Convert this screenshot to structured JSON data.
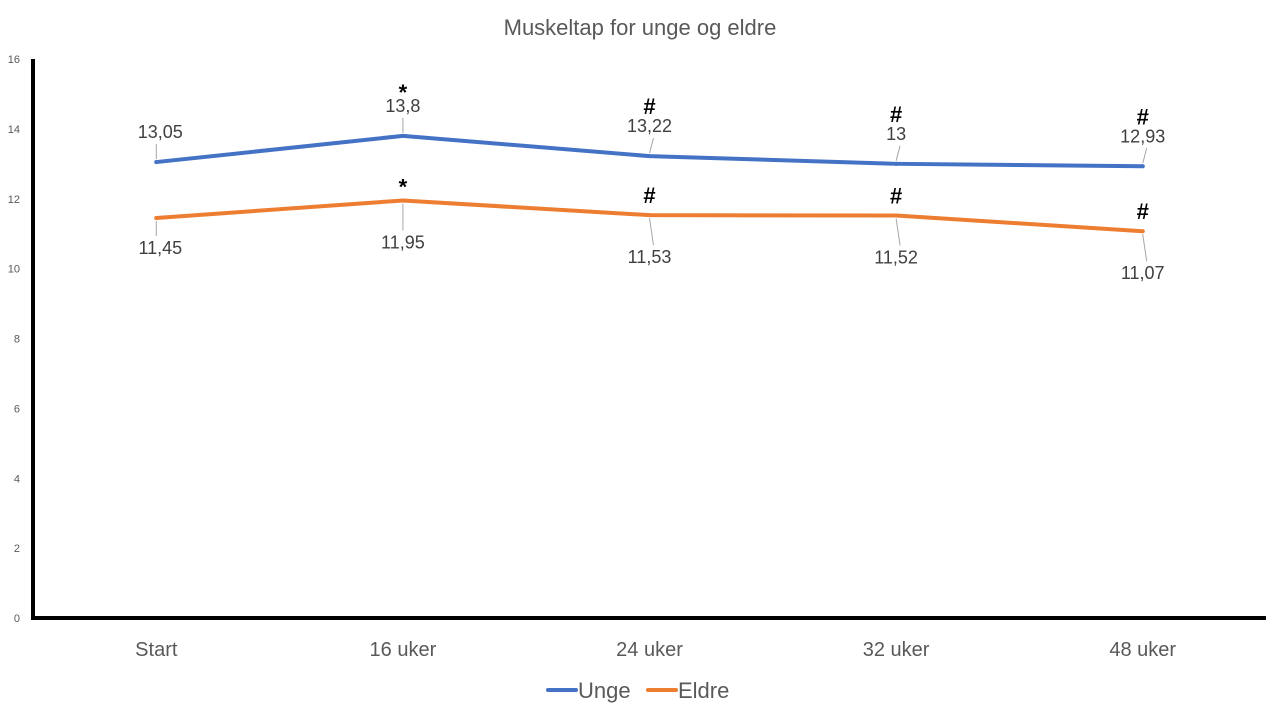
{
  "chart_data": {
    "type": "line",
    "title": "Muskeltap for unge og eldre",
    "xlabel": "",
    "ylabel": "",
    "categories": [
      "Start",
      "16 uker",
      "24 uker",
      "32 uker",
      "48 uker"
    ],
    "ylim": [
      0,
      16
    ],
    "yticks": [
      0,
      2,
      4,
      6,
      8,
      10,
      12,
      14,
      16
    ],
    "grid": false,
    "legend": "bottom",
    "series": [
      {
        "name": "Unge",
        "color": "#4472C4",
        "values": [
          13.05,
          13.8,
          13.22,
          13,
          12.93
        ],
        "labels": [
          "13,05",
          "13,8",
          "13,22",
          "13",
          "12,93"
        ],
        "markers": [
          "",
          "*",
          "#",
          "#",
          "#"
        ]
      },
      {
        "name": "Eldre",
        "color": "#ED7D31",
        "values": [
          11.45,
          11.95,
          11.53,
          11.52,
          11.07
        ],
        "labels": [
          "11,45",
          "11,95",
          "11,53",
          "11,52",
          "11,07"
        ],
        "markers": [
          "",
          "*",
          "#",
          "#",
          "#"
        ]
      }
    ]
  }
}
